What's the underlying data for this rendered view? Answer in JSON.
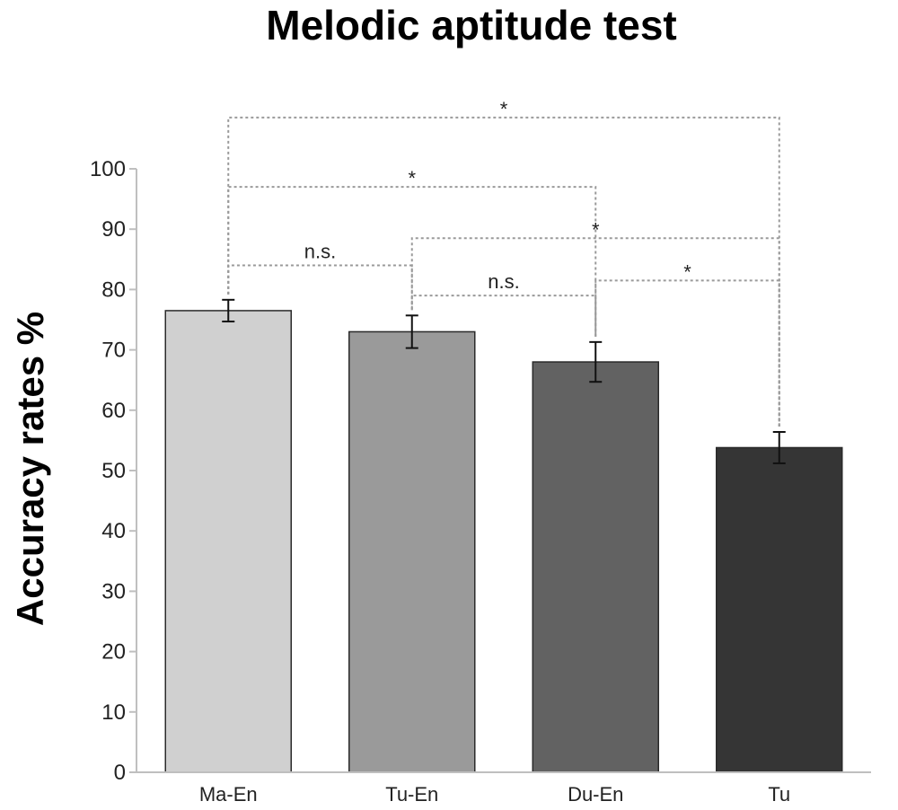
{
  "chart_data": {
    "type": "bar",
    "title": "Melodic aptitude test",
    "ylabel": "Accuracy rates %",
    "xlabel": "",
    "ylim": [
      0,
      100
    ],
    "yticks": [
      0,
      10,
      20,
      30,
      40,
      50,
      60,
      70,
      80,
      90,
      100
    ],
    "grid": false,
    "categories": [
      "Ma-En",
      "Tu-En",
      "Du-En",
      "Tu"
    ],
    "values": [
      76.5,
      73,
      68,
      53.8
    ],
    "errors": [
      1.8,
      2.7,
      3.3,
      2.6
    ],
    "colors": [
      "#d0d0d0",
      "#9a9a9a",
      "#626262",
      "#353535"
    ],
    "comparisons": [
      {
        "from": "Ma-En",
        "to": "Tu",
        "label": "*",
        "y": 108.5
      },
      {
        "from": "Ma-En",
        "to": "Du-En",
        "label": "*",
        "y": 97
      },
      {
        "from": "Tu-En",
        "to": "Tu",
        "label": "*",
        "y": 88.5
      },
      {
        "from": "Ma-En",
        "to": "Tu-En",
        "label": "n.s.",
        "y": 84
      },
      {
        "from": "Du-En",
        "to": "Tu",
        "label": "*",
        "y": 81.5
      },
      {
        "from": "Tu-En",
        "to": "Du-En",
        "label": "n.s.",
        "y": 79
      }
    ]
  }
}
